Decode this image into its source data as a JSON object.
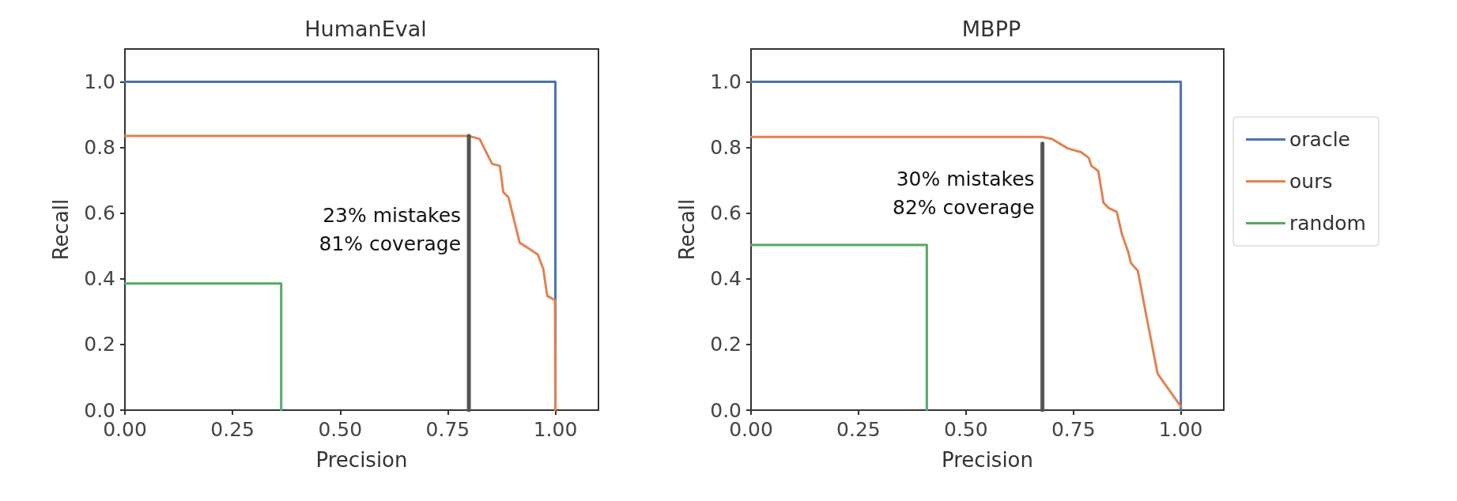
{
  "chart_data": [
    {
      "type": "line",
      "title": "HumanEval",
      "xlabel": "Precision",
      "ylabel": "Recall",
      "marker": "none",
      "grid": false,
      "xlim": [
        0,
        1.1
      ],
      "ylim": [
        0,
        1.1
      ],
      "xticks": [
        {
          "value": 0,
          "label": "0.00"
        },
        {
          "value": 0.25,
          "label": "0.25"
        },
        {
          "value": 0.5,
          "label": "0.50"
        },
        {
          "value": 0.75,
          "label": "0.75"
        },
        {
          "value": 1,
          "label": "1.00"
        }
      ],
      "yticks": [
        {
          "value": 0,
          "label": "0.0"
        },
        {
          "value": 0.2,
          "label": "0.2"
        },
        {
          "value": 0.4,
          "label": "0.4"
        },
        {
          "value": 0.6,
          "label": "0.6"
        },
        {
          "value": 0.8,
          "label": "0.8"
        },
        {
          "value": 1,
          "label": "1.0"
        }
      ],
      "series": [
        {
          "color": "#4c72b0",
          "x": [
            0,
            1,
            1
          ],
          "values": [
            1,
            1,
            0
          ]
        },
        {
          "color": "#dd8452",
          "x": [
            0,
            0.799,
            0.824,
            0.853,
            0.871,
            0.879,
            0.891,
            0.917,
            0.941,
            0.959,
            0.972,
            0.981,
            0.999,
            1.0
          ],
          "values": [
            0.835,
            0.835,
            0.826,
            0.75,
            0.744,
            0.664,
            0.648,
            0.51,
            0.49,
            0.474,
            0.429,
            0.348,
            0.335,
            0
          ]
        },
        {
          "color": "#55a868",
          "x": [
            0,
            0.363,
            0.363
          ],
          "values": [
            0.386,
            0.386,
            0
          ]
        },
        {
          "color": "#555555",
          "x": [
            0.799,
            0.799
          ],
          "values": [
            0,
            0.835
          ]
        }
      ],
      "annotations": [
        {
          "text": "23% mistakes\n81% coverage",
          "x": 0.799,
          "y": 0.55
        }
      ]
    },
    {
      "type": "line",
      "title": "MBPP",
      "xlabel": "Precision",
      "ylabel": "Recall",
      "marker": "none",
      "grid": false,
      "legend": "right",
      "xlim": [
        0,
        1.1
      ],
      "ylim": [
        0,
        1.1
      ],
      "xticks": [
        {
          "value": 0,
          "label": "0.00"
        },
        {
          "value": 0.25,
          "label": "0.25"
        },
        {
          "value": 0.5,
          "label": "0.50"
        },
        {
          "value": 0.75,
          "label": "0.75"
        },
        {
          "value": 1,
          "label": "1.00"
        }
      ],
      "yticks": [
        {
          "value": 0,
          "label": "0.0"
        },
        {
          "value": 0.2,
          "label": "0.2"
        },
        {
          "value": 0.4,
          "label": "0.4"
        },
        {
          "value": 0.6,
          "label": "0.6"
        },
        {
          "value": 0.8,
          "label": "0.8"
        },
        {
          "value": 1,
          "label": "1.0"
        }
      ],
      "series": [
        {
          "name": "oracle",
          "color": "#4c72b0",
          "x": [
            0,
            1,
            1
          ],
          "values": [
            1,
            1,
            0
          ]
        },
        {
          "name": "ours",
          "color": "#dd8452",
          "x": [
            0,
            0.676,
            0.7,
            0.737,
            0.768,
            0.786,
            0.792,
            0.808,
            0.82,
            0.832,
            0.851,
            0.863,
            0.878,
            0.884,
            0.9,
            0.921,
            0.946,
            1.0
          ],
          "values": [
            0.832,
            0.832,
            0.826,
            0.797,
            0.786,
            0.768,
            0.744,
            0.728,
            0.632,
            0.616,
            0.604,
            0.536,
            0.48,
            0.448,
            0.424,
            0.279,
            0.111,
            0.011
          ]
        },
        {
          "name": "random",
          "color": "#55a868",
          "x": [
            0,
            0.409,
            0.409
          ],
          "values": [
            0.503,
            0.503,
            0
          ]
        },
        {
          "color": "#555555",
          "x": [
            0.678,
            0.678
          ],
          "values": [
            0,
            0.812
          ]
        }
      ],
      "annotations": [
        {
          "text": "30% mistakes\n82% coverage",
          "x": 0.678,
          "y": 0.66
        }
      ]
    }
  ]
}
